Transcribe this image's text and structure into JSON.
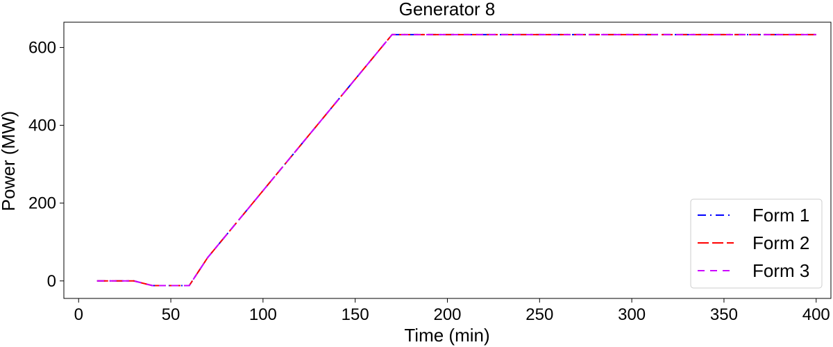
{
  "chart_data": {
    "type": "line",
    "title": "Generator 8",
    "xlabel": "Time (min)",
    "ylabel": "Power (MW)",
    "xlim": [
      -8,
      408
    ],
    "ylim": [
      -45,
      665
    ],
    "xticks": [
      0,
      50,
      100,
      150,
      200,
      250,
      300,
      350,
      400
    ],
    "yticks": [
      0,
      200,
      400,
      600
    ],
    "grid": false,
    "legend_position": "lower-right",
    "series": [
      {
        "name": "Form 1",
        "color": "#0000ff",
        "dash": "dashdot",
        "x": [
          10,
          30,
          40,
          60,
          70,
          170,
          400
        ],
        "y": [
          0,
          0,
          -12,
          -12,
          60,
          633,
          633
        ]
      },
      {
        "name": "Form 2",
        "color": "#ff0000",
        "dash": "longdash",
        "x": [
          10,
          30,
          40,
          60,
          70,
          170,
          400
        ],
        "y": [
          0,
          0,
          -12,
          -12,
          60,
          633,
          633
        ]
      },
      {
        "name": "Form 3",
        "color": "#cc00ff",
        "dash": "dashed",
        "x": [
          10,
          30,
          40,
          60,
          70,
          170,
          400
        ],
        "y": [
          0,
          0,
          -12,
          -12,
          60,
          633,
          633
        ]
      }
    ]
  }
}
